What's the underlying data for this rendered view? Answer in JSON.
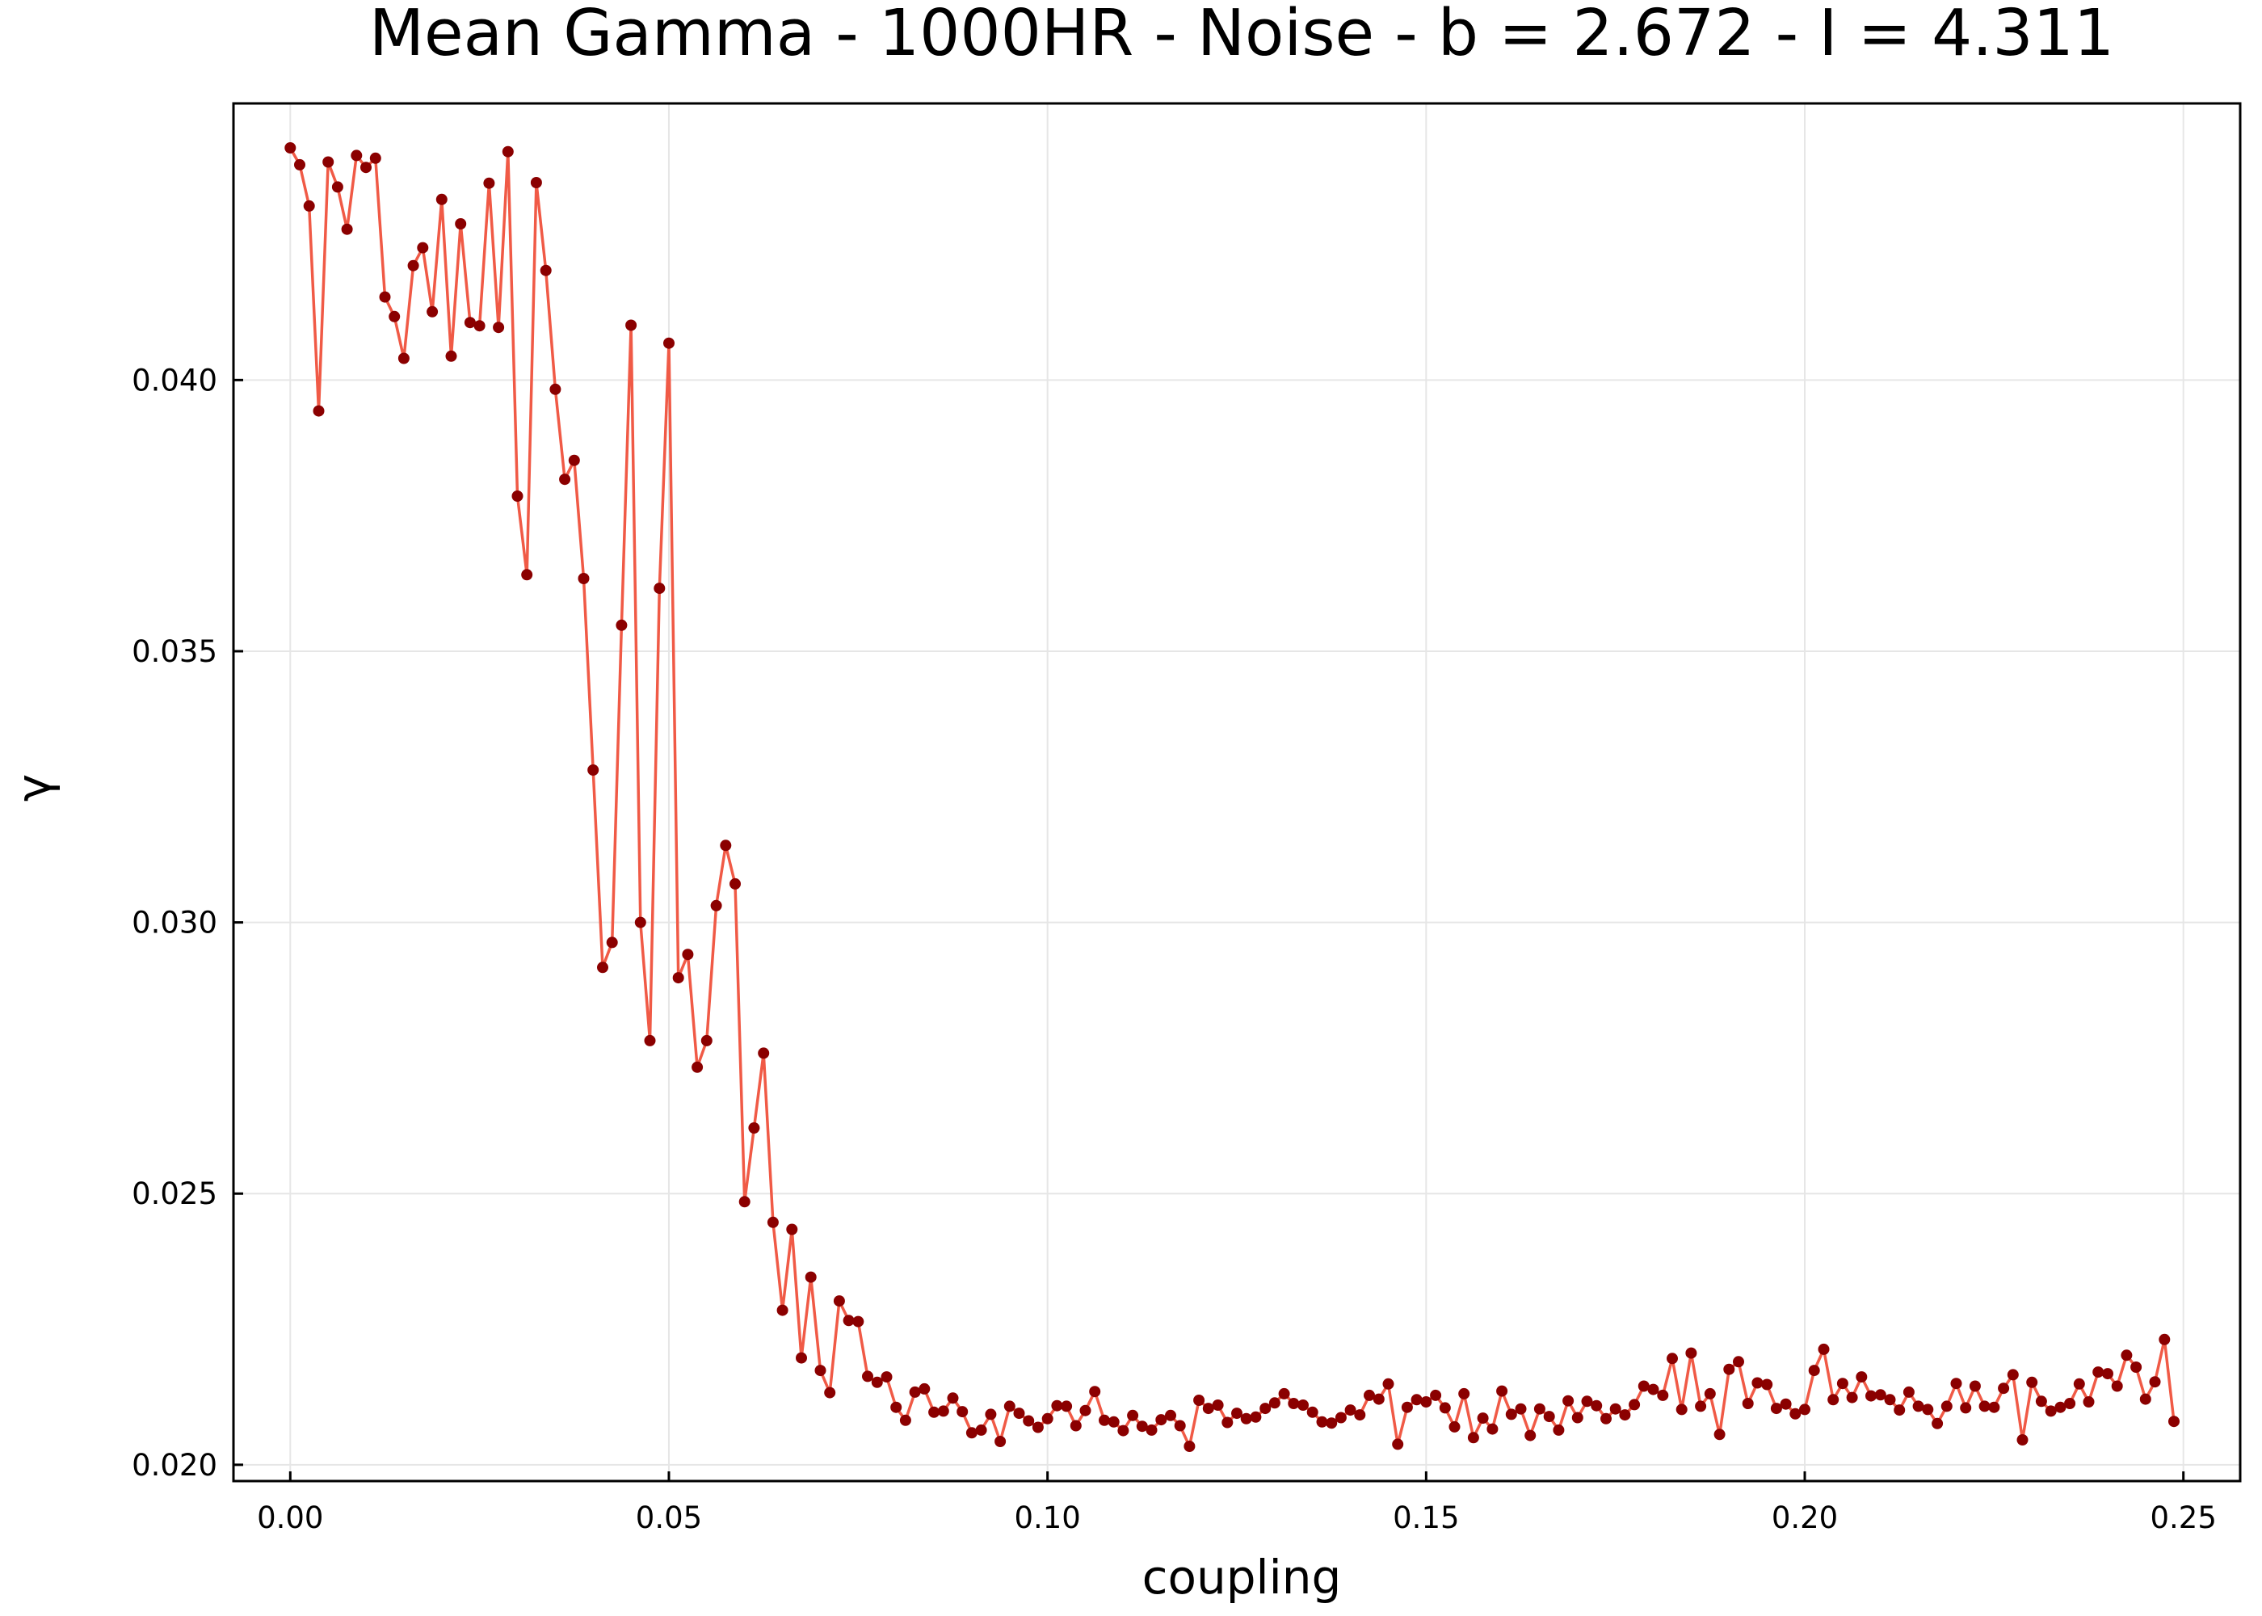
{
  "chart_data": {
    "type": "line",
    "title": "Mean Gamma - 1000HR - Noise - b = 2.672 - I = 4.311",
    "xlabel": "coupling",
    "ylabel": "γ",
    "xlim": [
      -0.0075,
      0.2575
    ],
    "ylim": [
      0.0197,
      0.0451
    ],
    "xticks": [
      0.0,
      0.05,
      0.1,
      0.15,
      0.2,
      0.25
    ],
    "xtick_labels": [
      "0.00",
      "0.05",
      "0.10",
      "0.15",
      "0.20",
      "0.25"
    ],
    "yticks": [
      0.02,
      0.025,
      0.03,
      0.035,
      0.04
    ],
    "ytick_labels": [
      "0.020",
      "0.025",
      "0.030",
      "0.035",
      "0.040"
    ],
    "grid": true,
    "legend": "none",
    "colors": {
      "line": "#f05a46",
      "marker": "#8b0000",
      "axis": "#000000",
      "grid": "#e6e6e6"
    },
    "x_start": 0.0,
    "x_step": 0.00125,
    "series": [
      {
        "values": [
          0.04428,
          0.04397,
          0.04321,
          0.03943,
          0.04402,
          0.04356,
          0.04278,
          0.04414,
          0.04392,
          0.04409,
          0.04153,
          0.04117,
          0.0404,
          0.04211,
          0.04244,
          0.04126,
          0.04333,
          0.04044,
          0.04288,
          0.04106,
          0.041,
          0.04363,
          0.04097,
          0.04421,
          0.03786,
          0.03641,
          0.04364,
          0.04202,
          0.03983,
          0.03817,
          0.03852,
          0.03634,
          0.03281,
          0.02917,
          0.02963,
          0.03548,
          0.04101,
          0.03,
          0.02782,
          0.03616,
          0.04068,
          0.02898,
          0.02941,
          0.02733,
          0.02782,
          0.03031,
          0.03142,
          0.03071,
          0.02485,
          0.02621,
          0.02759,
          0.02447,
          0.02285,
          0.02434,
          0.02197,
          0.02346,
          0.02174,
          0.02133,
          0.02302,
          0.02266,
          0.02264,
          0.02163,
          0.02152,
          0.02162,
          0.02106,
          0.02082,
          0.02134,
          0.0214,
          0.02097,
          0.02099,
          0.02123,
          0.02098,
          0.02059,
          0.02064,
          0.02093,
          0.02043,
          0.02108,
          0.02095,
          0.02081,
          0.02069,
          0.02085,
          0.02109,
          0.02108,
          0.02072,
          0.021,
          0.02135,
          0.02082,
          0.02079,
          0.02063,
          0.02091,
          0.02071,
          0.02064,
          0.02083,
          0.02091,
          0.02072,
          0.02034,
          0.02119,
          0.02104,
          0.0211,
          0.02078,
          0.02095,
          0.02085,
          0.02088,
          0.02104,
          0.02114,
          0.02131,
          0.02113,
          0.0211,
          0.02097,
          0.02079,
          0.02077,
          0.02087,
          0.02101,
          0.02092,
          0.02128,
          0.02121,
          0.02149,
          0.02038,
          0.02106,
          0.0212,
          0.02116,
          0.02128,
          0.02105,
          0.0207,
          0.02131,
          0.0205,
          0.02086,
          0.02066,
          0.02136,
          0.02093,
          0.02103,
          0.02054,
          0.02103,
          0.02089,
          0.02064,
          0.02118,
          0.02087,
          0.02117,
          0.02109,
          0.02085,
          0.02103,
          0.02092,
          0.02111,
          0.02145,
          0.02139,
          0.02128,
          0.02196,
          0.02102,
          0.02206,
          0.02108,
          0.02131,
          0.02056,
          0.02176,
          0.0219,
          0.02113,
          0.02151,
          0.02148,
          0.02104,
          0.02112,
          0.02094,
          0.02102,
          0.02174,
          0.02213,
          0.0212,
          0.0215,
          0.02124,
          0.02162,
          0.02127,
          0.02129,
          0.0212,
          0.02101,
          0.02134,
          0.02108,
          0.02102,
          0.02076,
          0.02108,
          0.0215,
          0.02105,
          0.02145,
          0.02108,
          0.02106,
          0.02141,
          0.02166,
          0.02046,
          0.02152,
          0.02117,
          0.02099,
          0.02106,
          0.02113,
          0.02149,
          0.02116,
          0.02171,
          0.02168,
          0.02145,
          0.02202,
          0.0218,
          0.02121,
          0.02153,
          0.02231,
          0.0208
        ]
      }
    ]
  }
}
